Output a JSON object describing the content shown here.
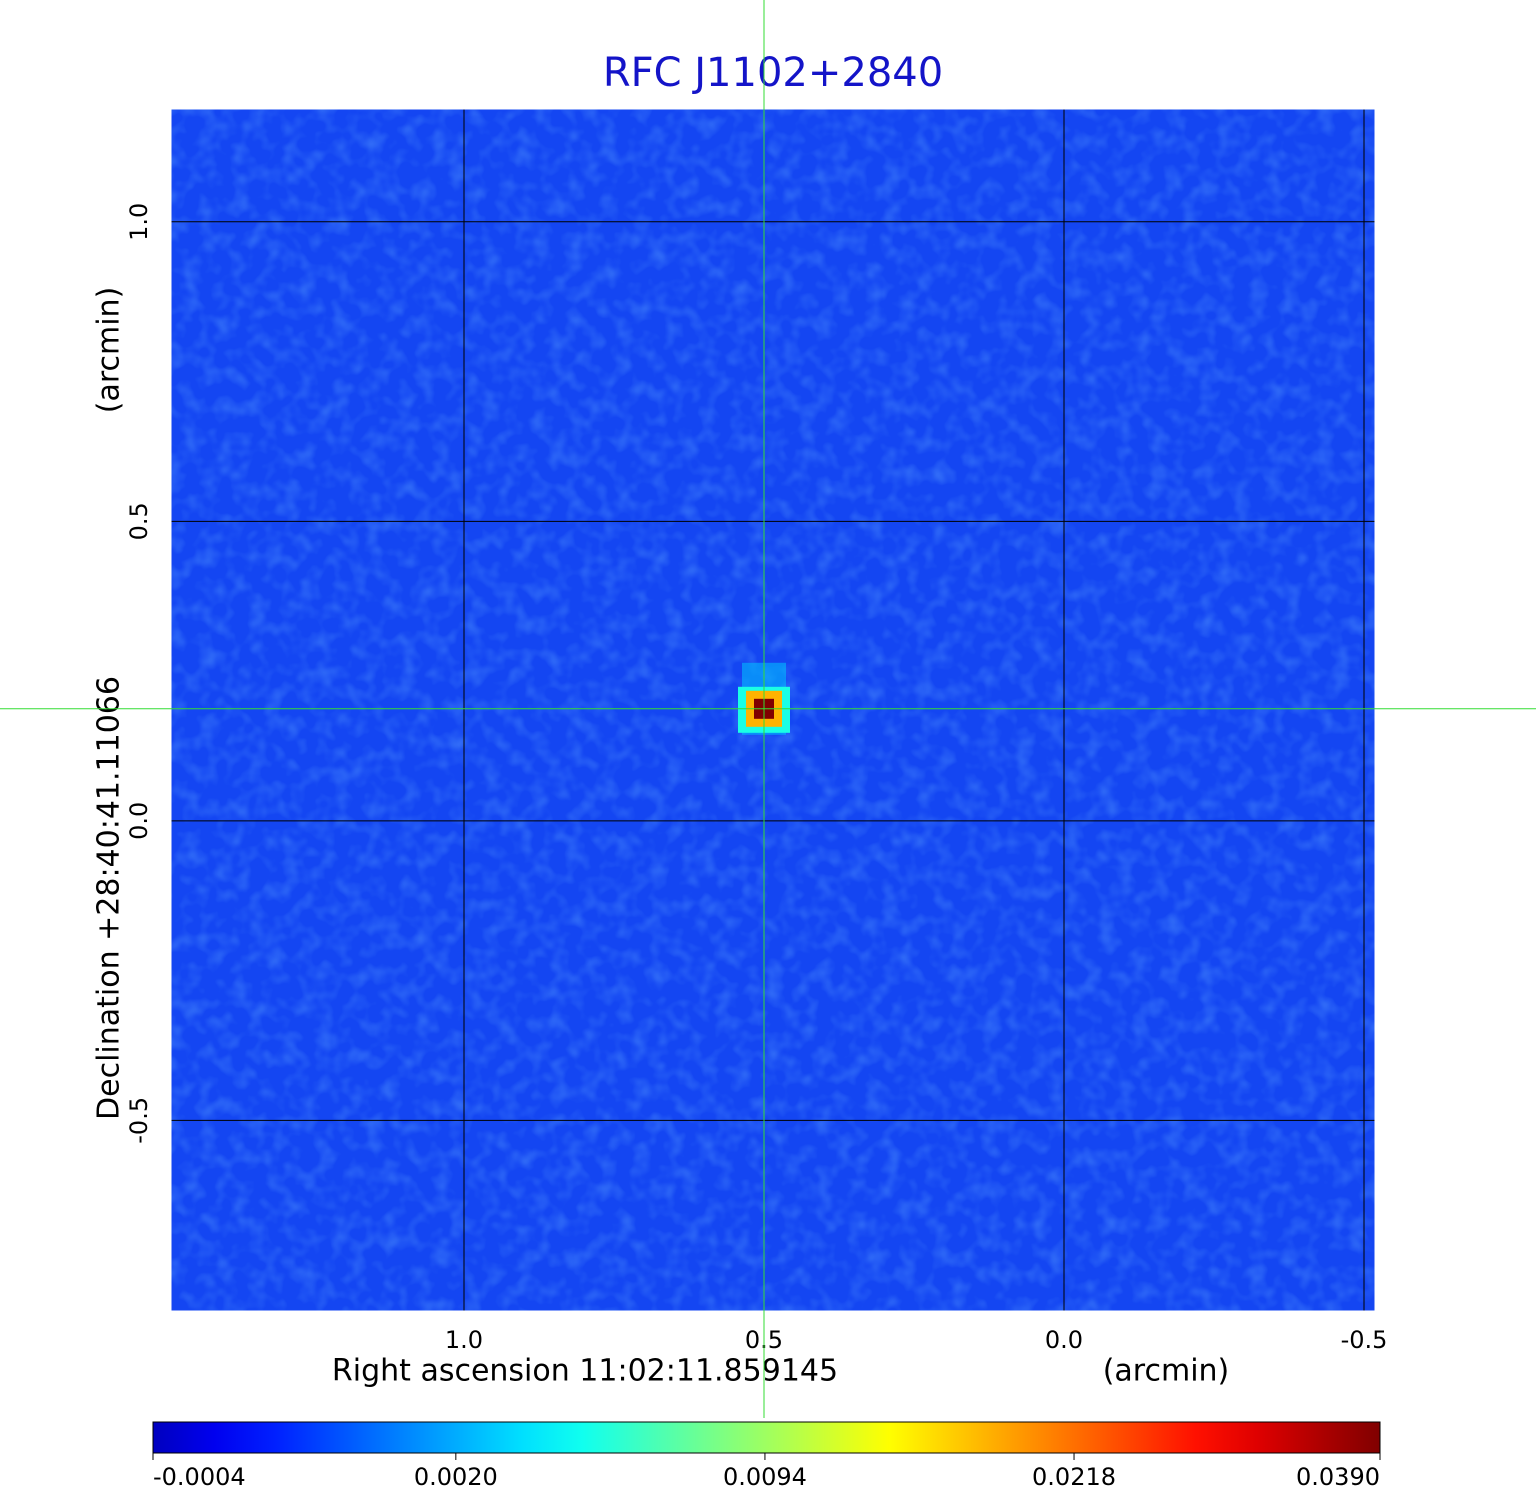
{
  "chart_data": {
    "type": "image",
    "title": "RFC J1102+2840",
    "x_label": "Right ascension  11:02:11.859145",
    "x_unit": "(arcmin)",
    "y_label": "Declination  +28:40:41.11066",
    "y_unit": "(arcmin)",
    "xlim": [
      1.49,
      -0.52
    ],
    "xticks": [
      {
        "value": 1,
        "label": "1.0"
      },
      0.5,
      {
        "value": 0,
        "label": "0.0"
      },
      -0.5
    ],
    "ylim": [
      -0.82,
      1.19
    ],
    "yticks": [
      {
        "value": 1,
        "label": "1.0"
      },
      0.5,
      {
        "value": 0,
        "label": "0.0"
      },
      -0.5
    ],
    "grid": true,
    "grid_color": "#000000",
    "crosshair_color": "#33dd33",
    "source": {
      "x": 0.5,
      "y": 0.187,
      "peak": 0.039
    },
    "colorbar": {
      "colormap": "jet",
      "scale": "sqrt",
      "clim": [
        -0.0004,
        0.039
      ],
      "ticks": [
        -0.0004,
        {
          "value": 0.002,
          "label": "0.0020"
        },
        0.0094,
        0.0218,
        {
          "value": 0.039,
          "label": "0.0390"
        }
      ]
    }
  }
}
